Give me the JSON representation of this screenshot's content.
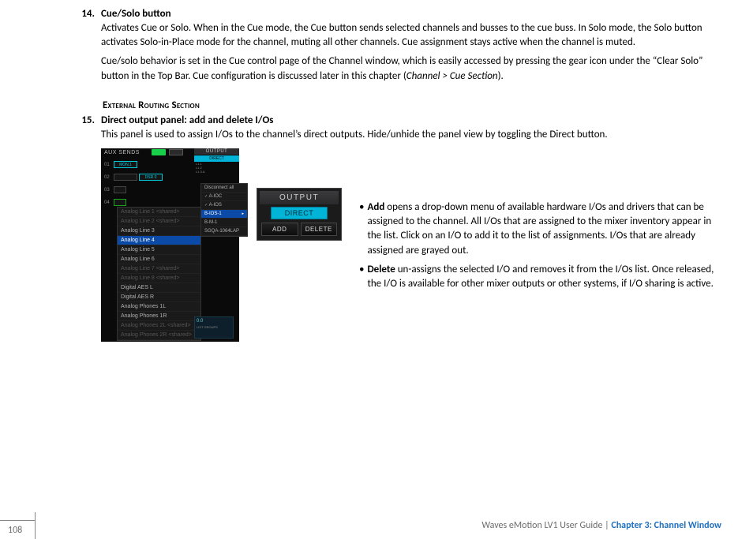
{
  "item14": {
    "number": "14.",
    "title": "Cue/Solo button",
    "para1": "Activates Cue or Solo. When in the Cue mode, the Cue button sends selected channels and busses to the cue buss. In Solo mode, the Solo button activates Solo-in-Place mode for the channel, muting all other channels. Cue assignment stays active when the channel is muted.",
    "para2_a": "Cue/solo behavior is set in the Cue control page of the Channel window, which is easily accessed by pressing the gear icon under the “Clear Solo” button in the Top Bar. Cue configuration is discussed later in this chapter (",
    "para2_i": "Channel > Cue Section",
    "para2_b": ")."
  },
  "section_header": "External Routing Section",
  "item15": {
    "number": "15.",
    "title": "Direct output panel: add and delete I/Os",
    "para": "This panel is used to assign I/Os to the channel’s direct outputs. Hide/unhide the panel view by toggling the Direct button."
  },
  "bullets": {
    "add_lead": "Add",
    "add_text": " opens a drop-down menu of available hardware I/Os and drivers that can be assigned to the channel. All I/Os that are assigned to the mixer inventory appear in the list. Click on an I/O to add it to the list of assignments. I/Os that are already assigned are grayed out.",
    "del_lead": "Delete",
    "del_text": " un-assigns the selected I/O and removes it from the I/Os list. Once released, the I/O is available for other mixer outputs or other systems, if I/O sharing is active."
  },
  "shot1": {
    "header": "AUX SENDS",
    "rows": [
      {
        "n": "01",
        "chips": [
          {
            "t": "MON.1",
            "w": "chip-w30 chip-cyan"
          }
        ]
      },
      {
        "n": "02",
        "chips": [
          {
            "t": "",
            "w": "chip-w30"
          },
          {
            "t": "DSR 0",
            "w": "chip-w30 chip-cyan"
          }
        ]
      },
      {
        "n": "03",
        "chips": [
          {
            "t": "",
            "w": "chip-w18"
          }
        ]
      },
      {
        "n": "04",
        "chips": [
          {
            "t": "",
            "w": "chip-w18 chip-green"
          }
        ]
      }
    ],
    "output": {
      "title": "OUTPUT",
      "direct": "DIRECT",
      "lines": [
        "L1.1",
        "L1.2",
        "L1.3.A"
      ]
    },
    "submenu": [
      "Disconnect all",
      "A-IOC",
      "A-IOS",
      "B-IOS-1",
      "B-M-1",
      "SGQA-1064LAP"
    ],
    "submenu_chk": [
      1,
      2
    ],
    "submenu_sel": 3,
    "dropdown": [
      {
        "t": "Analog Line 1 <shared>",
        "shared": true
      },
      {
        "t": "Analog Line 2 <shared>",
        "shared": true
      },
      {
        "t": "Analog Line 3"
      },
      {
        "t": "Analog Line 4",
        "sel": true
      },
      {
        "t": "Analog Line 5"
      },
      {
        "t": "Analog Line 6"
      },
      {
        "t": "Analog Line 7 <shared>",
        "shared": true
      },
      {
        "t": "Analog Line 8 <shared>",
        "shared": true
      },
      {
        "t": "Digital AES L"
      },
      {
        "t": "Digital AES R"
      },
      {
        "t": "Analog Phones 1L"
      },
      {
        "t": "Analog Phones 1R"
      },
      {
        "t": "Analog Phones 2L <shared>",
        "shared": true
      },
      {
        "t": "Analog Phones 2R <shared>",
        "shared": true
      }
    ],
    "bottom": {
      "num": "0.0",
      "lbl": "LIST GROUPS"
    }
  },
  "shot2": {
    "title": "OUTPUT",
    "direct": "DIRECT",
    "btn_add": "ADD",
    "btn_del": "DELETE"
  },
  "footer": {
    "page": "108",
    "guide": "Waves eMotion LV1 User Guide",
    "sep": " | ",
    "chapter": "Chapter 3: Channel Window"
  },
  "colors": {
    "text": "#000000",
    "footer_gray": "#6b6b6b",
    "chapter_blue": "#1f6fbf",
    "direct_cyan": "#00b4d8",
    "dropdown_sel": "#0b4aa6"
  }
}
